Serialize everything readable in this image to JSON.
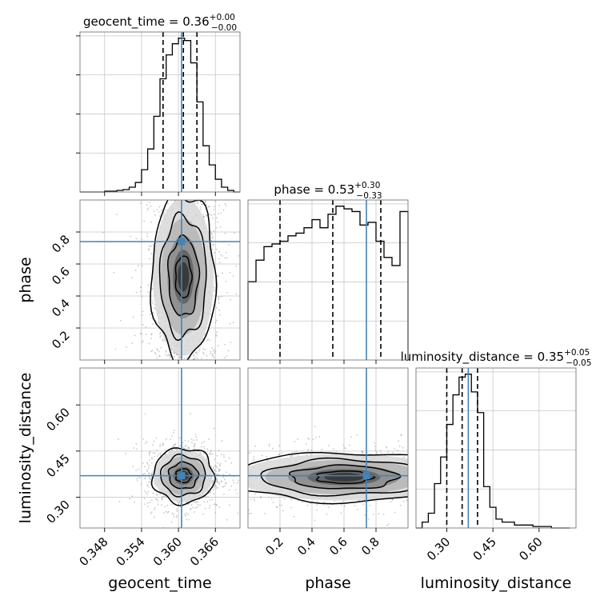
{
  "chart_data": {
    "type": "corner",
    "parameters": [
      "geocent_time",
      "phase",
      "luminosity_distance"
    ],
    "truths": {
      "geocent_time": 0.3605,
      "phase": 0.74,
      "luminosity_distance": 0.37
    },
    "colors": {
      "truth": "#4682b4",
      "hist": "#000000",
      "grid": "#c8c8c8",
      "axes": "#777777",
      "points": "#9a9a9a"
    },
    "titles": {
      "geocent_time": {
        "name": "geocent_time",
        "value": "0.36",
        "plus": "+0.00",
        "minus": "−0.00"
      },
      "phase": {
        "name": "phase",
        "value": "0.53",
        "plus": "+0.30",
        "minus": "−0.33"
      },
      "luminosity_distance": {
        "name": "luminosity_distance",
        "value": "0.35",
        "plus": "+0.05",
        "minus": "−0.05"
      }
    },
    "axes": {
      "geocent_time": {
        "range": [
          0.344,
          0.37
        ],
        "ticks": [
          0.348,
          0.354,
          0.36,
          0.366
        ],
        "ticklabels": [
          "0.348",
          "0.354",
          "0.360",
          "0.366"
        ]
      },
      "phase": {
        "range": [
          0.0,
          1.0
        ],
        "ticks": [
          0.2,
          0.4,
          0.6,
          0.8
        ],
        "ticklabels": [
          "0.2",
          "0.4",
          "0.6",
          "0.8"
        ]
      },
      "luminosity_distance": {
        "range": [
          0.2,
          0.72
        ],
        "ticks": [
          0.3,
          0.45,
          0.6
        ],
        "ticklabels": [
          "0.30",
          "0.45",
          "0.60"
        ]
      }
    },
    "histograms": {
      "geocent_time": {
        "edges": [
          0.344,
          0.345,
          0.346,
          0.347,
          0.348,
          0.349,
          0.35,
          0.351,
          0.352,
          0.353,
          0.354,
          0.355,
          0.356,
          0.357,
          0.358,
          0.359,
          0.36,
          0.361,
          0.362,
          0.363,
          0.364,
          0.365,
          0.366,
          0.367,
          0.368,
          0.369,
          0.37
        ],
        "counts": [
          0,
          0,
          0,
          0,
          1,
          1,
          2,
          3,
          6,
          12,
          28,
          54,
          95,
          142,
          172,
          186,
          193,
          190,
          162,
          113,
          58,
          34,
          16,
          6,
          2,
          0
        ],
        "quantiles": [
          0.3575,
          0.3608,
          0.363
        ]
      },
      "phase": {
        "edges": [
          0.0,
          0.05,
          0.1,
          0.15,
          0.2,
          0.25,
          0.3,
          0.35,
          0.4,
          0.45,
          0.5,
          0.55,
          0.6,
          0.65,
          0.7,
          0.75,
          0.8,
          0.85,
          0.9,
          0.95,
          1.0
        ],
        "counts": [
          2.9,
          3.7,
          4.2,
          4.3,
          4.4,
          4.6,
          4.7,
          4.9,
          5.2,
          4.9,
          5.4,
          5.7,
          5.6,
          5.5,
          5.0,
          5.1,
          4.4,
          3.8,
          3.5,
          5.5
        ],
        "quantiles": [
          0.2,
          0.53,
          0.83
        ]
      },
      "luminosity_distance": {
        "edges": [
          0.2,
          0.22,
          0.24,
          0.26,
          0.28,
          0.3,
          0.32,
          0.34,
          0.36,
          0.38,
          0.4,
          0.42,
          0.44,
          0.46,
          0.48,
          0.5,
          0.52,
          0.54,
          0.56,
          0.58,
          0.6,
          0.62,
          0.64,
          0.66,
          0.68,
          0.7
        ],
        "counts": [
          0.0,
          0.2,
          0.5,
          1.5,
          2.4,
          3.5,
          4.5,
          5.1,
          5.2,
          4.6,
          3.9,
          1.4,
          0.7,
          0.3,
          0.2,
          0.2,
          0.1,
          0.1,
          0.1,
          0.05,
          0.05,
          0.05,
          0.0,
          0.0,
          0.0
        ],
        "quantiles": [
          0.3,
          0.35,
          0.4
        ]
      }
    },
    "contours": {
      "phase_vs_geocent_time": {
        "center": [
          0.3608,
          0.52
        ],
        "spread": [
          0.0026,
          0.26
        ],
        "peak": 0.56,
        "tilt": 0.0
      },
      "luminosity_distance_vs_geocent_time": {
        "center": [
          0.3608,
          0.37
        ],
        "spread": [
          0.0025,
          0.045
        ],
        "peak": 0.37,
        "tilt": 0.0
      },
      "luminosity_distance_vs_phase": {
        "center": [
          0.6,
          0.365
        ],
        "spread": [
          0.35,
          0.04
        ],
        "peak": 0.365,
        "tilt": 0.0
      }
    },
    "grid": true
  }
}
